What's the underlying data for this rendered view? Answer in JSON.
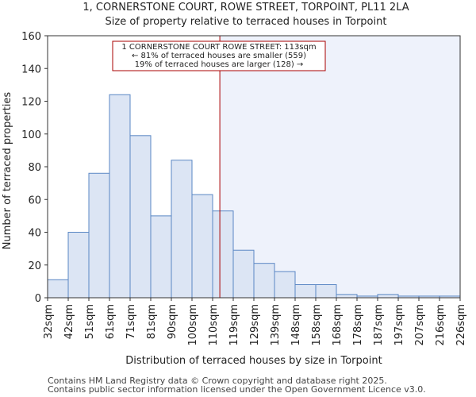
{
  "chart_data": {
    "type": "bar",
    "title": "1, CORNERSTONE COURT, ROWE STREET, TORPOINT, PL11 2LA",
    "subtitle": "Size of property relative to terraced houses in Torpoint",
    "xlabel": "Distribution of terraced houses by size in Torpoint",
    "ylabel": "Number of terraced properties",
    "ylim": [
      0,
      160
    ],
    "yticks": [
      0,
      20,
      40,
      60,
      80,
      100,
      120,
      140,
      160
    ],
    "bin_edges": [
      "32sqm",
      "42sqm",
      "51sqm",
      "61sqm",
      "71sqm",
      "81sqm",
      "90sqm",
      "100sqm",
      "110sqm",
      "119sqm",
      "129sqm",
      "139sqm",
      "148sqm",
      "158sqm",
      "168sqm",
      "178sqm",
      "187sqm",
      "197sqm",
      "207sqm",
      "216sqm",
      "226sqm"
    ],
    "values": [
      11,
      40,
      76,
      124,
      99,
      50,
      84,
      63,
      53,
      29,
      21,
      16,
      8,
      8,
      2,
      1,
      2,
      1,
      1,
      1
    ],
    "marker": {
      "value_sqm": 113,
      "bin_position": 8.35,
      "lines": [
        "1 CORNERSTONE COURT ROWE STREET: 113sqm",
        "← 81% of terraced houses are smaller (559)",
        "19% of terraced houses are larger (128) →"
      ],
      "color": "#aa0000"
    },
    "bar_fill": "#dce5f4",
    "bar_stroke": "#5a87c4",
    "highlight_fill": "#eef2fb"
  },
  "footer": {
    "line1": "Contains HM Land Registry data © Crown copyright and database right 2025.",
    "line2": "Contains public sector information licensed under the Open Government Licence v3.0."
  }
}
